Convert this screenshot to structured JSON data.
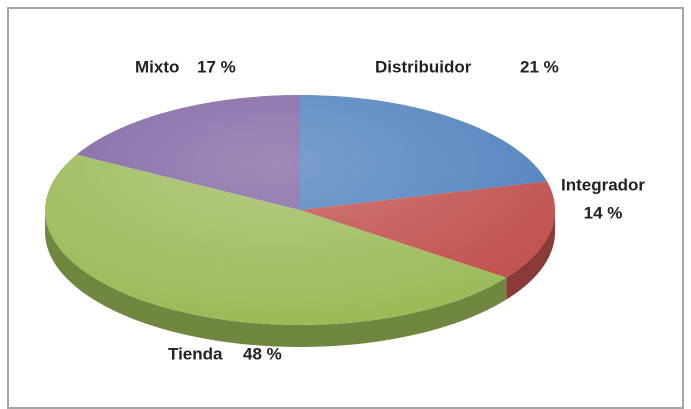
{
  "chart_data": {
    "type": "pie",
    "categories": [
      "Distribuidor",
      "Integrador",
      "Tienda",
      "Mixto"
    ],
    "values": [
      21,
      14,
      48,
      17
    ],
    "value_labels": [
      "21 %",
      "14 %",
      "48 %",
      "17 %"
    ],
    "colors": [
      "#4f81bd",
      "#c0504d",
      "#9bbb59",
      "#8064a2"
    ]
  }
}
